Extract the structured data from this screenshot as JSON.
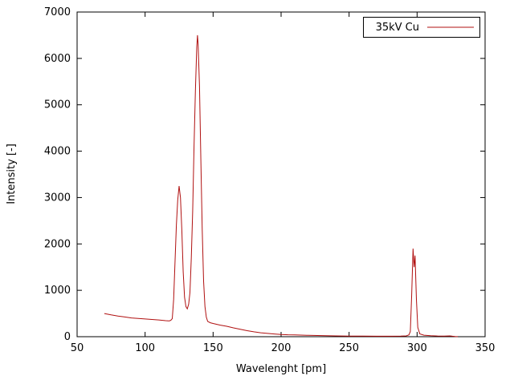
{
  "chart_data": {
    "type": "line",
    "title": "",
    "xlabel": "Wavelenght [pm]",
    "ylabel": "Intensity [-]",
    "xlim": [
      50,
      350
    ],
    "ylim": [
      0,
      7000
    ],
    "x_ticks": [
      50,
      100,
      150,
      200,
      250,
      300,
      350
    ],
    "y_ticks": [
      0,
      1000,
      2000,
      3000,
      4000,
      5000,
      6000,
      7000
    ],
    "grid": false,
    "legend": {
      "position": "top-right",
      "box": true
    },
    "series": [
      {
        "name": "35kV Cu",
        "color": "#b01010",
        "points": [
          [
            70,
            500
          ],
          [
            75,
            470
          ],
          [
            80,
            445
          ],
          [
            85,
            425
          ],
          [
            90,
            405
          ],
          [
            95,
            392
          ],
          [
            100,
            382
          ],
          [
            105,
            372
          ],
          [
            110,
            362
          ],
          [
            113,
            352
          ],
          [
            115,
            345
          ],
          [
            117,
            340
          ],
          [
            118,
            342
          ],
          [
            119,
            355
          ],
          [
            120,
            390
          ],
          [
            121,
            800
          ],
          [
            122,
            1600
          ],
          [
            123,
            2400
          ],
          [
            124,
            2950
          ],
          [
            125,
            3250
          ],
          [
            126,
            3000
          ],
          [
            127,
            2300
          ],
          [
            128,
            1400
          ],
          [
            129,
            850
          ],
          [
            130,
            650
          ],
          [
            131,
            600
          ],
          [
            132,
            700
          ],
          [
            133,
            950
          ],
          [
            134,
            1700
          ],
          [
            135,
            2700
          ],
          [
            136,
            4100
          ],
          [
            137,
            5300
          ],
          [
            138,
            6250
          ],
          [
            138.5,
            6500
          ],
          [
            139,
            6300
          ],
          [
            140,
            5400
          ],
          [
            141,
            3800
          ],
          [
            142,
            2300
          ],
          [
            143,
            1200
          ],
          [
            144,
            650
          ],
          [
            145,
            420
          ],
          [
            146,
            330
          ],
          [
            148,
            300
          ],
          [
            150,
            285
          ],
          [
            155,
            250
          ],
          [
            160,
            225
          ],
          [
            165,
            190
          ],
          [
            170,
            160
          ],
          [
            175,
            130
          ],
          [
            180,
            105
          ],
          [
            185,
            85
          ],
          [
            190,
            70
          ],
          [
            195,
            58
          ],
          [
            200,
            48
          ],
          [
            205,
            42
          ],
          [
            210,
            38
          ],
          [
            220,
            30
          ],
          [
            230,
            24
          ],
          [
            240,
            18
          ],
          [
            250,
            14
          ],
          [
            260,
            12
          ],
          [
            270,
            10
          ],
          [
            280,
            10
          ],
          [
            288,
            12
          ],
          [
            292,
            18
          ],
          [
            294,
            40
          ],
          [
            295,
            110
          ],
          [
            296,
            900
          ],
          [
            297,
            1900
          ],
          [
            297.8,
            1500
          ],
          [
            298.5,
            1750
          ],
          [
            299.5,
            800
          ],
          [
            300.5,
            200
          ],
          [
            302,
            60
          ],
          [
            305,
            32
          ],
          [
            310,
            22
          ],
          [
            315,
            16
          ],
          [
            320,
            12
          ],
          [
            324,
            18
          ],
          [
            326,
            10
          ],
          [
            328,
            6
          ],
          [
            330,
            2
          ]
        ]
      }
    ]
  }
}
